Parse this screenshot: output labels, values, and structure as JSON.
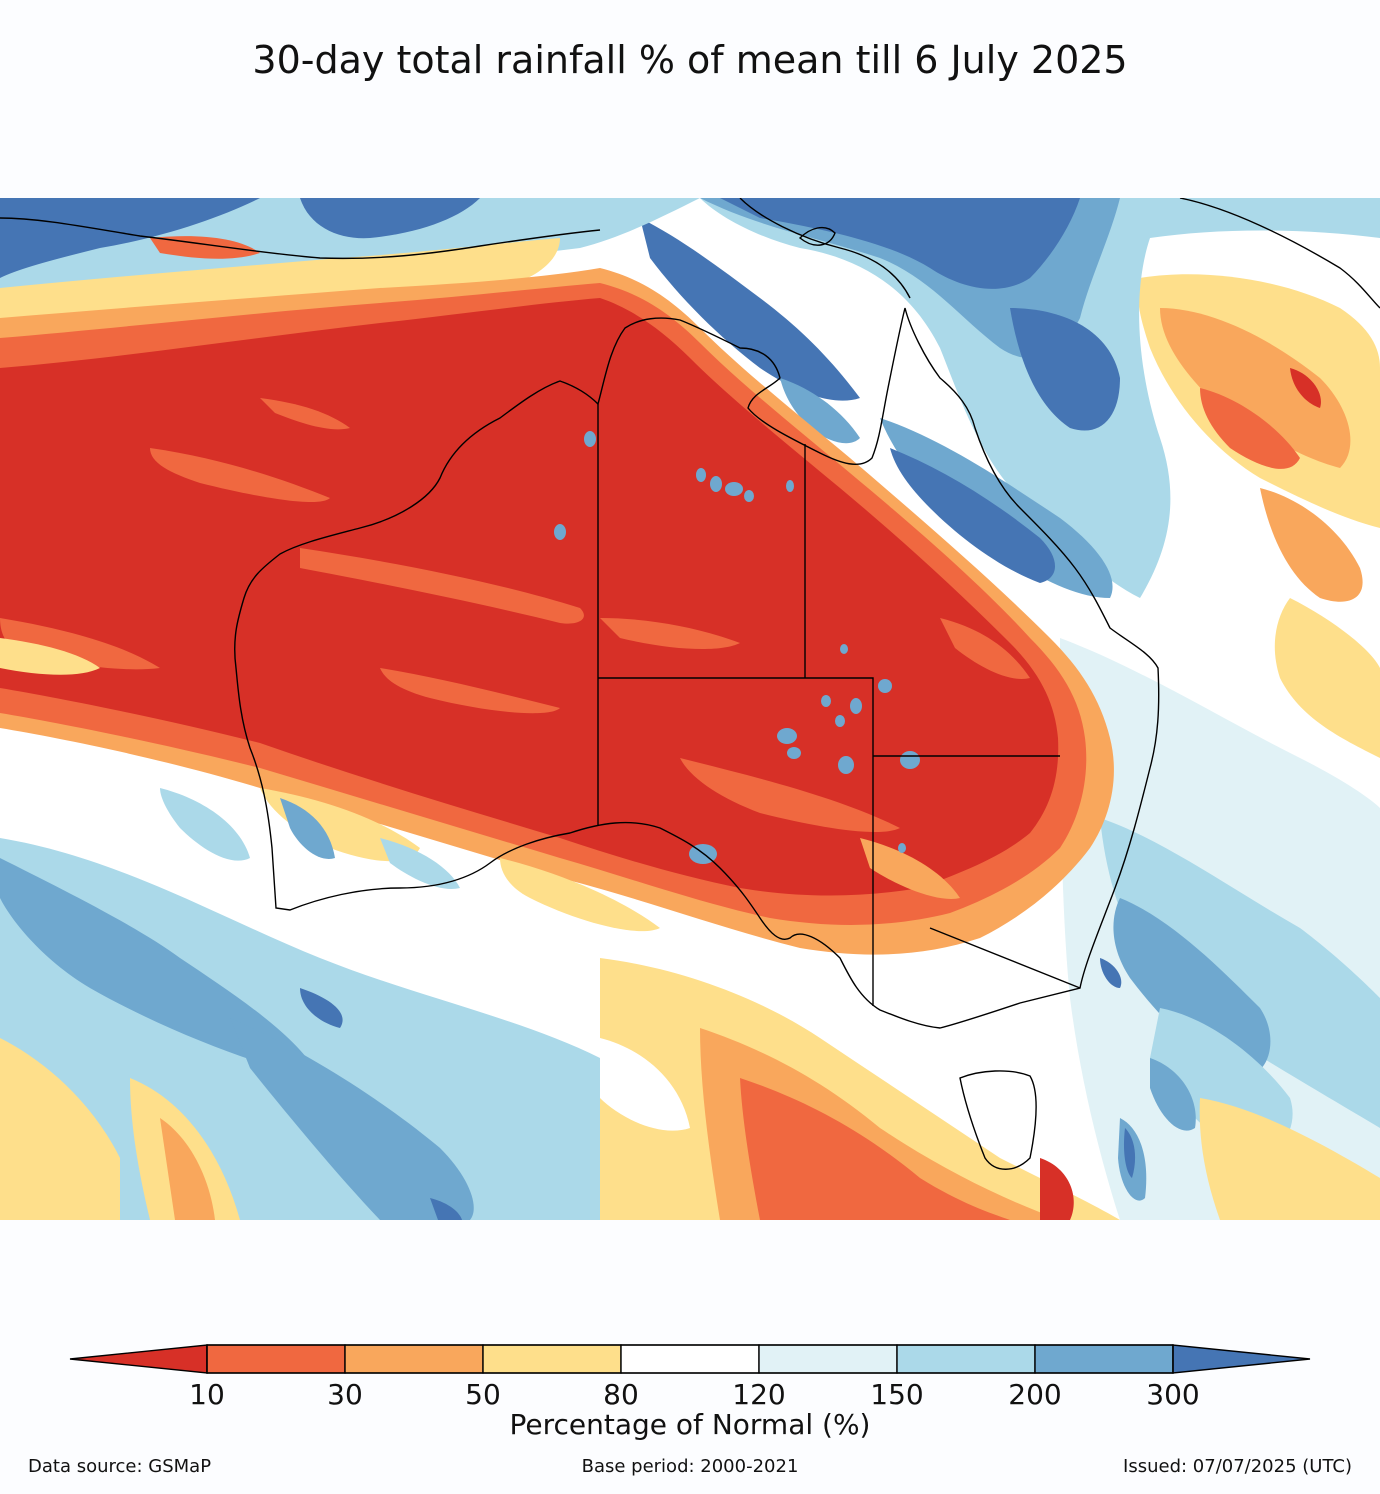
{
  "title": "30-day total rainfall % of mean till 6 July 2025",
  "colorbar": {
    "label": "Percentage of Normal (%)",
    "ticks": [
      "10",
      "30",
      "50",
      "80",
      "120",
      "150",
      "200",
      "300"
    ],
    "colors": [
      "#d73027",
      "#f06840",
      "#f9a75c",
      "#fedf8b",
      "#ffffff",
      "#e1f2f6",
      "#abd9e9",
      "#6fa8cf",
      "#4575b4"
    ]
  },
  "footer": {
    "source": "Data source: GSMaP",
    "base_period": "Base period: 2000-2021",
    "issued": "Issued: 07/07/2025 (UTC)"
  },
  "palette": {
    "very_dry": "#d73027",
    "dry": "#f06840",
    "below": "#f9a75c",
    "slightly_below": "#fedf8b",
    "normal": "#ffffff",
    "slightly_above": "#e1f2f6",
    "above": "#abd9e9",
    "wet": "#6fa8cf",
    "very_wet": "#4575b4"
  }
}
